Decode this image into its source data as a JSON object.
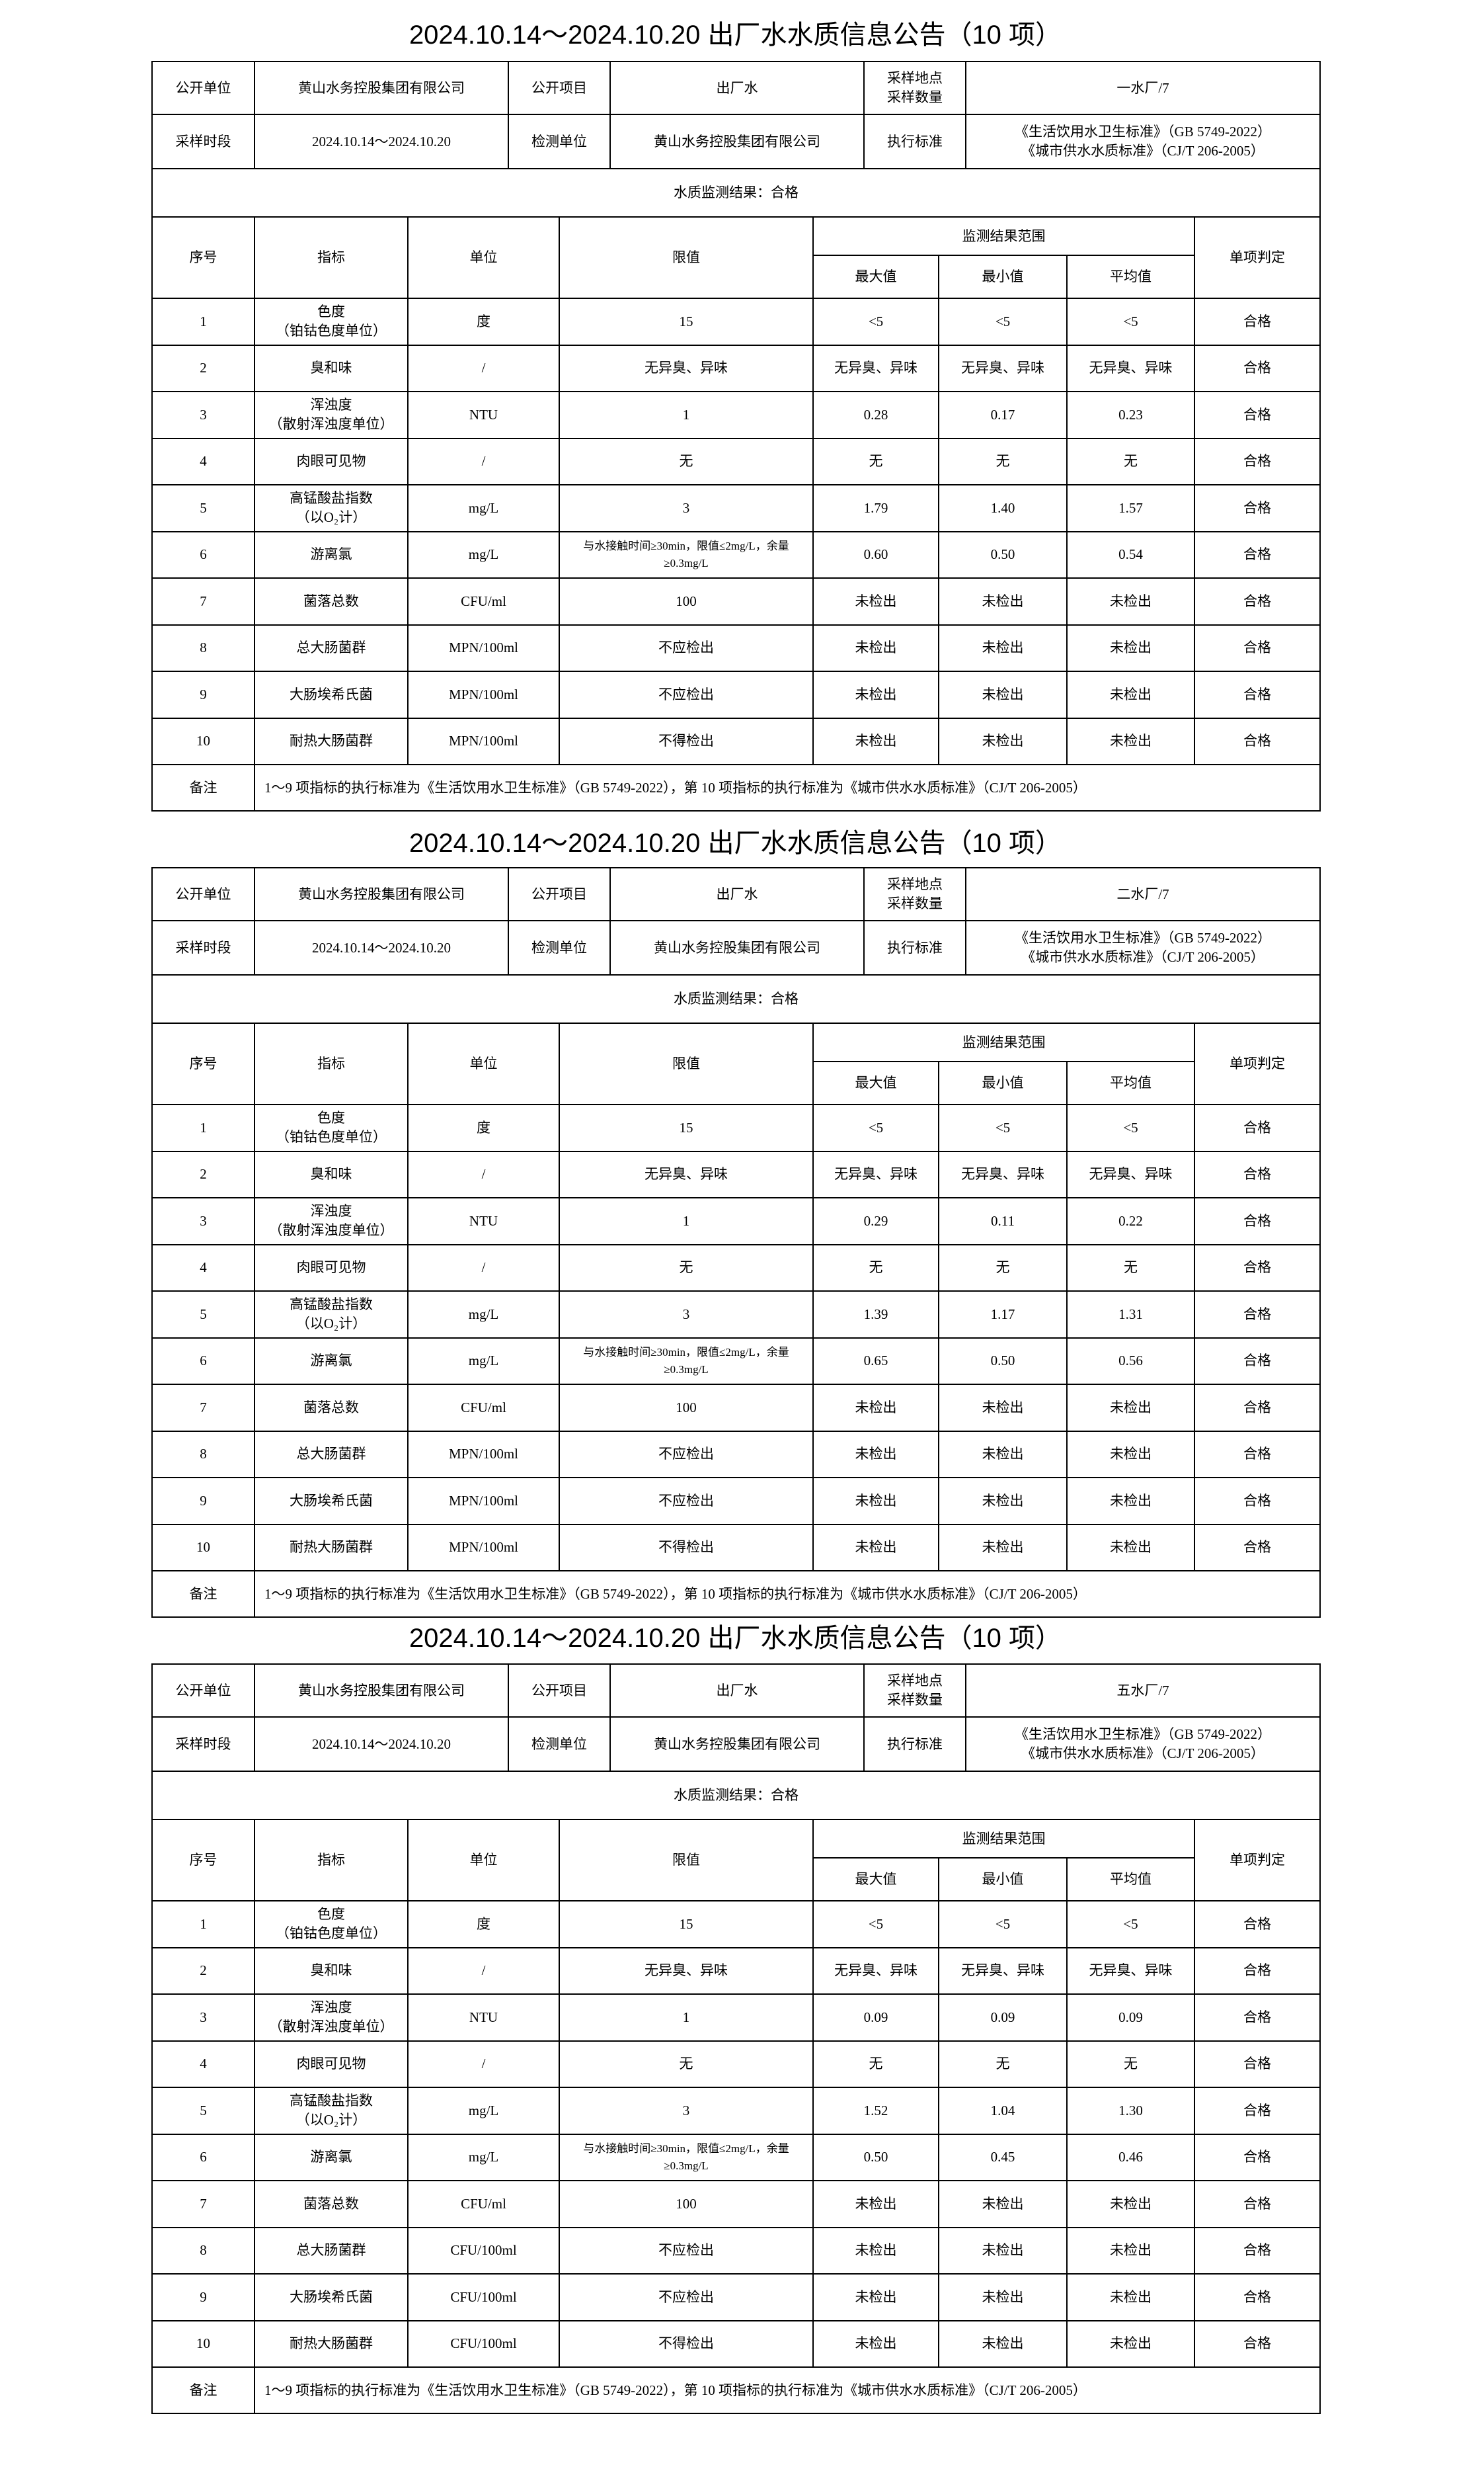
{
  "labels": {
    "publisher_label": "公开单位",
    "item_label": "公开项目",
    "site_label_1": "采样地点",
    "site_label_2": "采样数量",
    "period_label": "采样时段",
    "lab_label": "检测单位",
    "standard_label": "执行标准",
    "col_no": "序号",
    "col_indicator": "指标",
    "col_unit": "单位",
    "col_limit": "限值",
    "col_range": "监测结果范围",
    "col_max": "最大值",
    "col_min": "最小值",
    "col_avg": "平均值",
    "col_judgement": "单项判定",
    "remark_label": "备注"
  },
  "reports": [
    {
      "title": "2024.10.14～2024.10.20 出厂水水质信息公告（10 项）",
      "publisher": "黄山水务控股集团有限公司",
      "item": "出厂水",
      "site": "一水厂/7",
      "period": "2024.10.14～2024.10.20",
      "lab": "黄山水务控股集团有限公司",
      "standard_1": "《生活饮用水卫生标准》（GB 5749-2022）",
      "standard_2": "《城市供水水质标准》（CJ/T 206-2005）",
      "result": "水质监测结果：合格",
      "rows": [
        [
          "1",
          "色度",
          "（铂钴色度单位）",
          "度",
          "15",
          "<5",
          "<5",
          "<5",
          "合格"
        ],
        [
          "2",
          "臭和味",
          "",
          "/",
          "无异臭、异味",
          "无异臭、异味",
          "无异臭、异味",
          "无异臭、异味",
          "合格"
        ],
        [
          "3",
          "浑浊度",
          "（散射浑浊度单位）",
          "NTU",
          "1",
          "0.28",
          "0.17",
          "0.23",
          "合格"
        ],
        [
          "4",
          "肉眼可见物",
          "",
          "/",
          "无",
          "无",
          "无",
          "无",
          "合格"
        ],
        [
          "5",
          "高锰酸盐指数",
          "（以O₂计）",
          "mg/L",
          "3",
          "1.79",
          "1.40",
          "1.57",
          "合格"
        ],
        [
          "6",
          "游离氯",
          "",
          "mg/L",
          "与水接触时间≥30min，限值≤2mg/L，余量≥0.3mg/L",
          "0.60",
          "0.50",
          "0.54",
          "合格"
        ],
        [
          "7",
          "菌落总数",
          "",
          "CFU/ml",
          "100",
          "未检出",
          "未检出",
          "未检出",
          "合格"
        ],
        [
          "8",
          "总大肠菌群",
          "",
          "MPN/100ml",
          "不应检出",
          "未检出",
          "未检出",
          "未检出",
          "合格"
        ],
        [
          "9",
          "大肠埃希氏菌",
          "",
          "MPN/100ml",
          "不应检出",
          "未检出",
          "未检出",
          "未检出",
          "合格"
        ],
        [
          "10",
          "耐热大肠菌群",
          "",
          "MPN/100ml",
          "不得检出",
          "未检出",
          "未检出",
          "未检出",
          "合格"
        ]
      ],
      "remark": "1～9 项指标的执行标准为《生活饮用水卫生标准》（GB 5749-2022），第 10 项指标的执行标准为《城市供水水质标准》（CJ/T 206-2005）"
    },
    {
      "title": "2024.10.14～2024.10.20 出厂水水质信息公告（10 项）",
      "publisher": "黄山水务控股集团有限公司",
      "item": "出厂水",
      "site": "二水厂/7",
      "period": "2024.10.14～2024.10.20",
      "lab": "黄山水务控股集团有限公司",
      "standard_1": "《生活饮用水卫生标准》（GB 5749-2022）",
      "standard_2": "《城市供水水质标准》（CJ/T 206-2005）",
      "result": "水质监测结果：合格",
      "rows": [
        [
          "1",
          "色度",
          "（铂钴色度单位）",
          "度",
          "15",
          "<5",
          "<5",
          "<5",
          "合格"
        ],
        [
          "2",
          "臭和味",
          "",
          "/",
          "无异臭、异味",
          "无异臭、异味",
          "无异臭、异味",
          "无异臭、异味",
          "合格"
        ],
        [
          "3",
          "浑浊度",
          "（散射浑浊度单位）",
          "NTU",
          "1",
          "0.29",
          "0.11",
          "0.22",
          "合格"
        ],
        [
          "4",
          "肉眼可见物",
          "",
          "/",
          "无",
          "无",
          "无",
          "无",
          "合格"
        ],
        [
          "5",
          "高锰酸盐指数",
          "（以O₂计）",
          "mg/L",
          "3",
          "1.39",
          "1.17",
          "1.31",
          "合格"
        ],
        [
          "6",
          "游离氯",
          "",
          "mg/L",
          "与水接触时间≥30min，限值≤2mg/L，余量≥0.3mg/L",
          "0.65",
          "0.50",
          "0.56",
          "合格"
        ],
        [
          "7",
          "菌落总数",
          "",
          "CFU/ml",
          "100",
          "未检出",
          "未检出",
          "未检出",
          "合格"
        ],
        [
          "8",
          "总大肠菌群",
          "",
          "MPN/100ml",
          "不应检出",
          "未检出",
          "未检出",
          "未检出",
          "合格"
        ],
        [
          "9",
          "大肠埃希氏菌",
          "",
          "MPN/100ml",
          "不应检出",
          "未检出",
          "未检出",
          "未检出",
          "合格"
        ],
        [
          "10",
          "耐热大肠菌群",
          "",
          "MPN/100ml",
          "不得检出",
          "未检出",
          "未检出",
          "未检出",
          "合格"
        ]
      ],
      "remark": "1～9 项指标的执行标准为《生活饮用水卫生标准》（GB 5749-2022），第 10 项指标的执行标准为《城市供水水质标准》（CJ/T 206-2005）"
    },
    {
      "title": "2024.10.14～2024.10.20 出厂水水质信息公告（10 项）",
      "publisher": "黄山水务控股集团有限公司",
      "item": "出厂水",
      "site": "五水厂/7",
      "period": "2024.10.14～2024.10.20",
      "lab": "黄山水务控股集团有限公司",
      "standard_1": "《生活饮用水卫生标准》（GB 5749-2022）",
      "standard_2": "《城市供水水质标准》（CJ/T 206-2005）",
      "result": "水质监测结果：合格",
      "rows": [
        [
          "1",
          "色度",
          "（铂钴色度单位）",
          "度",
          "15",
          "<5",
          "<5",
          "<5",
          "合格"
        ],
        [
          "2",
          "臭和味",
          "",
          "/",
          "无异臭、异味",
          "无异臭、异味",
          "无异臭、异味",
          "无异臭、异味",
          "合格"
        ],
        [
          "3",
          "浑浊度",
          "（散射浑浊度单位）",
          "NTU",
          "1",
          "0.09",
          "0.09",
          "0.09",
          "合格"
        ],
        [
          "4",
          "肉眼可见物",
          "",
          "/",
          "无",
          "无",
          "无",
          "无",
          "合格"
        ],
        [
          "5",
          "高锰酸盐指数",
          "（以O₂计）",
          "mg/L",
          "3",
          "1.52",
          "1.04",
          "1.30",
          "合格"
        ],
        [
          "6",
          "游离氯",
          "",
          "mg/L",
          "与水接触时间≥30min，限值≤2mg/L，余量≥0.3mg/L",
          "0.50",
          "0.45",
          "0.46",
          "合格"
        ],
        [
          "7",
          "菌落总数",
          "",
          "CFU/ml",
          "100",
          "未检出",
          "未检出",
          "未检出",
          "合格"
        ],
        [
          "8",
          "总大肠菌群",
          "",
          "CFU/100ml",
          "不应检出",
          "未检出",
          "未检出",
          "未检出",
          "合格"
        ],
        [
          "9",
          "大肠埃希氏菌",
          "",
          "CFU/100ml",
          "不应检出",
          "未检出",
          "未检出",
          "未检出",
          "合格"
        ],
        [
          "10",
          "耐热大肠菌群",
          "",
          "CFU/100ml",
          "不得检出",
          "未检出",
          "未检出",
          "未检出",
          "合格"
        ]
      ],
      "remark": "1～9 项指标的执行标准为《生活饮用水卫生标准》（GB 5749-2022），第 10 项指标的执行标准为《城市供水水质标准》（CJ/T 206-2005）"
    }
  ]
}
